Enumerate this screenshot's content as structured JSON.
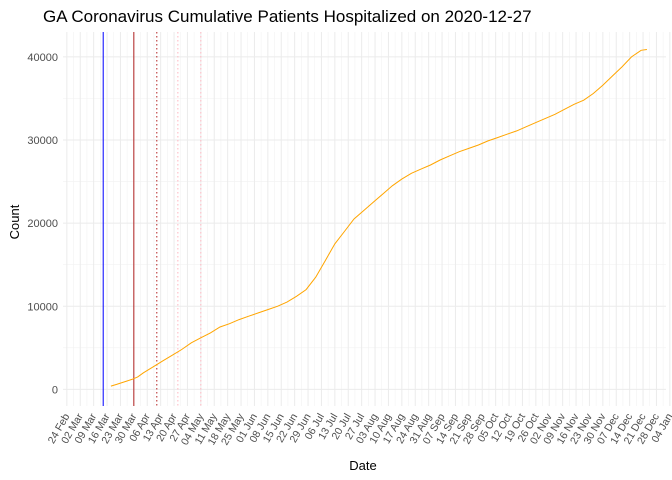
{
  "chart_data": {
    "type": "line",
    "title": "GA Coronavirus Cumulative Patients Hospitalized on 2020-12-27",
    "xlabel": "Date",
    "ylabel": "Count",
    "ylim": [
      -2000,
      43000
    ],
    "yticks": [
      0,
      10000,
      20000,
      30000,
      40000
    ],
    "ytick_labels": [
      "0",
      "10000",
      "20000",
      "30000",
      "40000"
    ],
    "xlim_days": [
      -2,
      313
    ],
    "xtick_labels": [
      "24 Feb",
      "02 Mar",
      "09 Mar",
      "16 Mar",
      "23 Mar",
      "30 Mar",
      "06 Apr",
      "13 Apr",
      "20 Apr",
      "27 Apr",
      "04 May",
      "11 May",
      "18 May",
      "25 May",
      "01 Jun",
      "08 Jun",
      "15 Jun",
      "22 Jun",
      "29 Jun",
      "06 Jul",
      "13 Jul",
      "20 Jul",
      "27 Jul",
      "03 Aug",
      "10 Aug",
      "17 Aug",
      "24 Aug",
      "31 Aug",
      "07 Sep",
      "14 Sep",
      "21 Sep",
      "28 Sep",
      "05 Oct",
      "12 Oct",
      "19 Oct",
      "26 Oct",
      "02 Nov",
      "09 Nov",
      "16 Nov",
      "23 Nov",
      "30 Nov",
      "07 Dec",
      "14 Dec",
      "21 Dec",
      "28 Dec",
      "04 Jan"
    ],
    "xtick_days": [
      0,
      7,
      14,
      21,
      28,
      35,
      42,
      49,
      56,
      63,
      70,
      77,
      84,
      91,
      98,
      105,
      112,
      119,
      126,
      133,
      140,
      147,
      154,
      161,
      168,
      175,
      182,
      189,
      196,
      203,
      210,
      217,
      224,
      231,
      238,
      245,
      252,
      259,
      266,
      273,
      280,
      287,
      294,
      301,
      308,
      315
    ],
    "grid": true,
    "series": [
      {
        "name": "Cumulative Patients Hospitalized",
        "color": "#FFA500",
        "x_days": [
          23,
          26,
          30,
          34,
          37,
          40,
          45,
          50,
          55,
          60,
          65,
          70,
          75,
          80,
          85,
          90,
          95,
          100,
          105,
          110,
          115,
          120,
          125,
          130,
          135,
          140,
          145,
          150,
          155,
          160,
          165,
          170,
          175,
          180,
          185,
          190,
          195,
          200,
          205,
          210,
          215,
          220,
          225,
          230,
          235,
          240,
          245,
          250,
          255,
          260,
          265,
          270,
          275,
          280,
          285,
          290,
          295,
          300,
          303
        ],
        "values": [
          400,
          600,
          900,
          1200,
          1500,
          2000,
          2700,
          3400,
          4100,
          4800,
          5600,
          6200,
          6800,
          7500,
          7900,
          8400,
          8800,
          9200,
          9600,
          10000,
          10500,
          11200,
          12000,
          13500,
          15500,
          17500,
          19000,
          20500,
          21500,
          22500,
          23500,
          24500,
          25300,
          26000,
          26500,
          27000,
          27600,
          28100,
          28600,
          29000,
          29400,
          29900,
          30300,
          30700,
          31100,
          31600,
          32100,
          32600,
          33100,
          33700,
          34300,
          34800,
          35600,
          36600,
          37700,
          38800,
          40000,
          40800,
          40900
        ]
      }
    ],
    "vlines": [
      {
        "day": 19,
        "color": "#0000FF",
        "style": "solid"
      },
      {
        "day": 35,
        "color": "#B22222",
        "style": "solid"
      },
      {
        "day": 47,
        "color": "#B22222",
        "style": "dotted"
      },
      {
        "day": 58,
        "color": "#FFB6C1",
        "style": "dotted"
      },
      {
        "day": 70,
        "color": "#FFB6C1",
        "style": "dotted"
      }
    ]
  }
}
